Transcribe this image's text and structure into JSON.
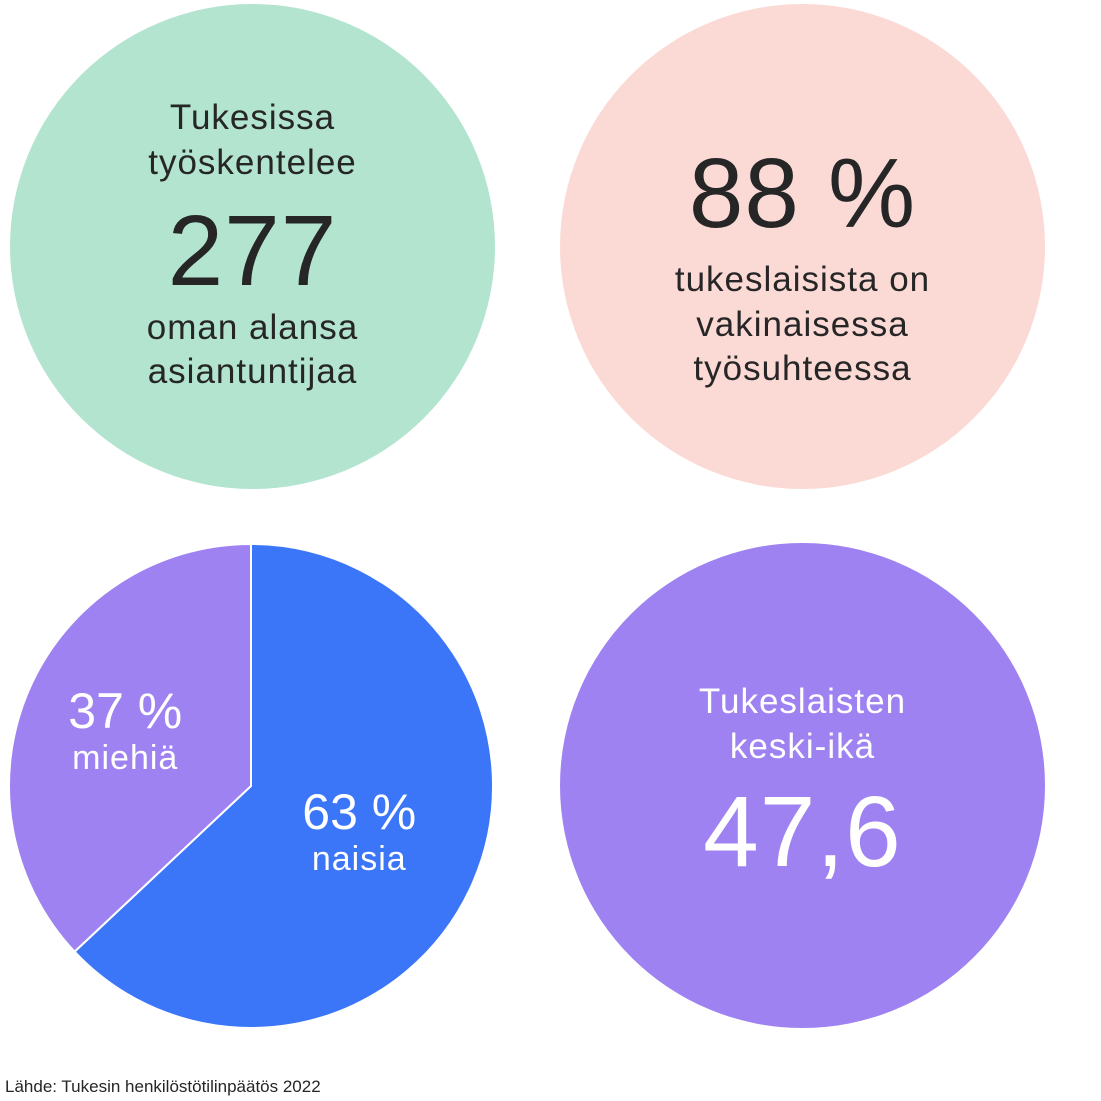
{
  "colors": {
    "green": "#b3e4d0",
    "pink": "#fbdad6",
    "blue": "#3b76f9",
    "purple": "#9e82f1",
    "text_dark": "#262626",
    "text_light": "#ffffff"
  },
  "employees": {
    "line1": "Tukesissa",
    "line2": "työskentelee",
    "value": "277",
    "line3": "oman alansa",
    "line4": "asiantuntijaa"
  },
  "permanent": {
    "value": "88 %",
    "line1": "tukeslaisista on",
    "line2": "vakinaisessa",
    "line3": "työsuhteessa"
  },
  "average_age": {
    "line1": "Tukeslaisten",
    "line2": "keski-ikä",
    "value": "47,6"
  },
  "chart_data": {
    "type": "pie",
    "slices": [
      {
        "name": "naisia",
        "value": 63,
        "label": "63 %",
        "color": "#3b76f9"
      },
      {
        "name": "miehiä",
        "value": 37,
        "label": "37 %",
        "color": "#9e82f1"
      }
    ]
  },
  "source": "Lähde: Tukesin henkilöstötilinpäätös 2022"
}
